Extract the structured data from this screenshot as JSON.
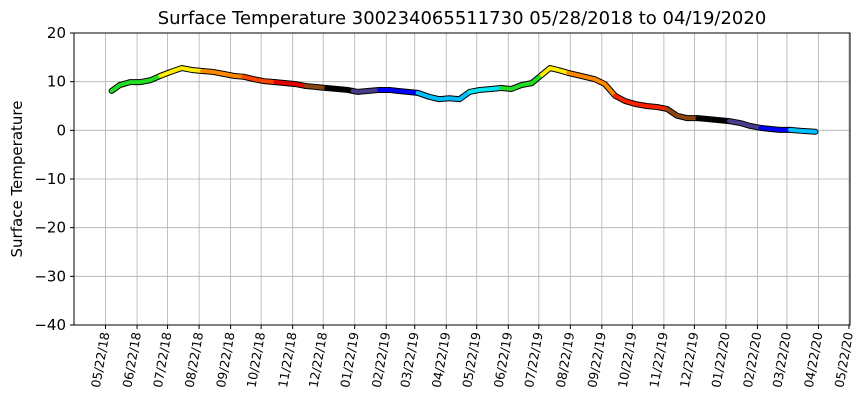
{
  "chart_data": {
    "type": "line",
    "title": "Surface Temperature 300234065511730  05/28/2018 to 04/19/2020",
    "y_label": "Surface Temperature",
    "xlim": [
      "2018-04-21",
      "2020-05-23"
    ],
    "ylim": [
      -40,
      20
    ],
    "yticks": [
      {
        "value": -40,
        "label": "−40"
      },
      {
        "value": -30,
        "label": "−30"
      },
      {
        "value": -20,
        "label": "−20"
      },
      {
        "value": -10,
        "label": "−10"
      },
      0,
      10,
      20
    ],
    "xticks": [
      {
        "value": "2018-05-22",
        "label": "05/22/18"
      },
      {
        "value": "2018-06-22",
        "label": "06/22/18"
      },
      {
        "value": "2018-07-22",
        "label": "07/22/18"
      },
      {
        "value": "2018-08-22",
        "label": "08/22/18"
      },
      {
        "value": "2018-09-22",
        "label": "09/22/18"
      },
      {
        "value": "2018-10-22",
        "label": "10/22/18"
      },
      {
        "value": "2018-11-22",
        "label": "11/22/18"
      },
      {
        "value": "2018-12-22",
        "label": "12/22/18"
      },
      {
        "value": "2019-01-22",
        "label": "01/22/19"
      },
      {
        "value": "2019-02-22",
        "label": "02/22/19"
      },
      {
        "value": "2019-03-22",
        "label": "03/22/19"
      },
      {
        "value": "2019-04-22",
        "label": "04/22/19"
      },
      {
        "value": "2019-05-22",
        "label": "05/22/19"
      },
      {
        "value": "2019-06-22",
        "label": "06/22/19"
      },
      {
        "value": "2019-07-22",
        "label": "07/22/19"
      },
      {
        "value": "2019-08-22",
        "label": "08/22/19"
      },
      {
        "value": "2019-09-22",
        "label": "09/22/19"
      },
      {
        "value": "2019-10-22",
        "label": "10/22/19"
      },
      {
        "value": "2019-11-22",
        "label": "11/22/19"
      },
      {
        "value": "2019-12-22",
        "label": "12/22/19"
      },
      {
        "value": "2020-01-22",
        "label": "01/22/20"
      },
      {
        "value": "2020-02-22",
        "label": "02/22/20"
      },
      {
        "value": "2020-03-22",
        "label": "03/22/20"
      },
      {
        "value": "2020-04-22",
        "label": "04/22/20"
      },
      {
        "value": "2020-05-22",
        "label": "05/22/20"
      }
    ],
    "grid": true,
    "series": [
      {
        "color": "#22dd22",
        "x": [
          "2018-05-28",
          "2018-06-05",
          "2018-06-15",
          "2018-06-25",
          "2018-07-05",
          "2018-07-15"
        ],
        "values": [
          8.1,
          9.3,
          9.9,
          9.9,
          10.3,
          11.2
        ]
      },
      {
        "color": "#ffee00",
        "x": [
          "2018-07-15",
          "2018-07-25",
          "2018-08-05",
          "2018-08-15",
          "2018-08-25"
        ],
        "values": [
          11.2,
          12,
          12.8,
          12.4,
          12.2
        ]
      },
      {
        "color": "#ff8800",
        "x": [
          "2018-08-25",
          "2018-09-05",
          "2018-09-15",
          "2018-09-25",
          "2018-10-05"
        ],
        "values": [
          12.2,
          12,
          11.6,
          11.2,
          11
        ]
      },
      {
        "color": "#ff4400",
        "x": [
          "2018-10-05",
          "2018-10-15",
          "2018-10-25",
          "2018-11-05"
        ],
        "values": [
          11,
          10.5,
          10.1,
          9.9
        ]
      },
      {
        "color": "#e00000",
        "x": [
          "2018-11-05",
          "2018-11-15",
          "2018-11-25",
          "2018-12-05"
        ],
        "values": [
          9.9,
          9.7,
          9.5,
          9.1
        ]
      },
      {
        "color": "#8b4513",
        "x": [
          "2018-12-05",
          "2018-12-15",
          "2018-12-25"
        ],
        "values": [
          9.1,
          8.9,
          8.7
        ]
      },
      {
        "color": "#000000",
        "x": [
          "2018-12-25",
          "2019-01-05",
          "2019-01-15",
          "2019-01-20"
        ],
        "values": [
          8.7,
          8.5,
          8.3,
          8.1
        ]
      },
      {
        "color": "#483d8b",
        "x": [
          "2019-01-20",
          "2019-01-25",
          "2019-02-05",
          "2019-02-15"
        ],
        "values": [
          8.1,
          7.9,
          8.1,
          8.3
        ]
      },
      {
        "color": "#0000ff",
        "x": [
          "2019-02-15",
          "2019-02-25",
          "2019-03-05",
          "2019-03-15",
          "2019-03-25"
        ],
        "values": [
          8.3,
          8.3,
          8.1,
          7.9,
          7.7
        ]
      },
      {
        "color": "#00bfff",
        "x": [
          "2019-03-25",
          "2019-04-05",
          "2019-04-15",
          "2019-04-25",
          "2019-05-05",
          "2019-05-15"
        ],
        "values": [
          7.7,
          6.9,
          6.4,
          6.6,
          6.4,
          7.9
        ]
      },
      {
        "color": "#00e5ee",
        "x": [
          "2019-05-15",
          "2019-05-25",
          "2019-06-05",
          "2019-06-15"
        ],
        "values": [
          7.9,
          8.3,
          8.5,
          8.7
        ]
      },
      {
        "color": "#22dd22",
        "x": [
          "2019-06-15",
          "2019-06-25",
          "2019-07-05",
          "2019-07-15",
          "2019-07-25"
        ],
        "values": [
          8.7,
          8.5,
          9.3,
          9.7,
          11.4
        ]
      },
      {
        "color": "#ffee00",
        "x": [
          "2019-07-25",
          "2019-08-02",
          "2019-08-10",
          "2019-08-20"
        ],
        "values": [
          11.4,
          12.8,
          12.4,
          11.8
        ]
      },
      {
        "color": "#ff8800",
        "x": [
          "2019-08-20",
          "2019-09-01",
          "2019-09-15",
          "2019-09-25",
          "2019-10-05"
        ],
        "values": [
          11.8,
          11.2,
          10.5,
          9.5,
          7.1
        ]
      },
      {
        "color": "#ff2200",
        "x": [
          "2019-10-05",
          "2019-10-15",
          "2019-10-25",
          "2019-11-05",
          "2019-11-15",
          "2019-11-25"
        ],
        "values": [
          7.1,
          6,
          5.4,
          5,
          4.8,
          4.4
        ]
      },
      {
        "color": "#8b4513",
        "x": [
          "2019-11-25",
          "2019-12-05",
          "2019-12-15",
          "2019-12-25"
        ],
        "values": [
          4.4,
          3,
          2.5,
          2.5
        ]
      },
      {
        "color": "#000000",
        "x": [
          "2019-12-25",
          "2020-01-05",
          "2020-01-15",
          "2020-01-25"
        ],
        "values": [
          2.5,
          2.3,
          2.1,
          1.9
        ]
      },
      {
        "color": "#483d8b",
        "x": [
          "2020-01-25",
          "2020-02-05",
          "2020-02-15",
          "2020-02-25"
        ],
        "values": [
          1.9,
          1.5,
          0.9,
          0.5
        ]
      },
      {
        "color": "#0000ff",
        "x": [
          "2020-02-25",
          "2020-03-05",
          "2020-03-15",
          "2020-03-25"
        ],
        "values": [
          0.5,
          0.3,
          0.1,
          0.1
        ]
      },
      {
        "color": "#00bfff",
        "x": [
          "2020-03-25",
          "2020-04-05",
          "2020-04-19"
        ],
        "values": [
          0.1,
          -0.1,
          -0.3
        ]
      }
    ]
  }
}
